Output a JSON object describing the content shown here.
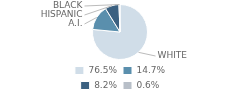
{
  "chart_data": {
    "type": "pie",
    "categories": [
      "WHITE",
      "A.I.",
      "HISPANIC",
      "BLACK"
    ],
    "values": [
      76.5,
      14.7,
      8.2,
      0.6
    ],
    "value_labels": [
      "76.5%",
      "14.7%",
      "8.2%",
      "0.6%"
    ],
    "colors": [
      "#d0dde8",
      "#5a8fad",
      "#3a6080",
      "#b8bfc8"
    ],
    "legend": "bottom"
  }
}
